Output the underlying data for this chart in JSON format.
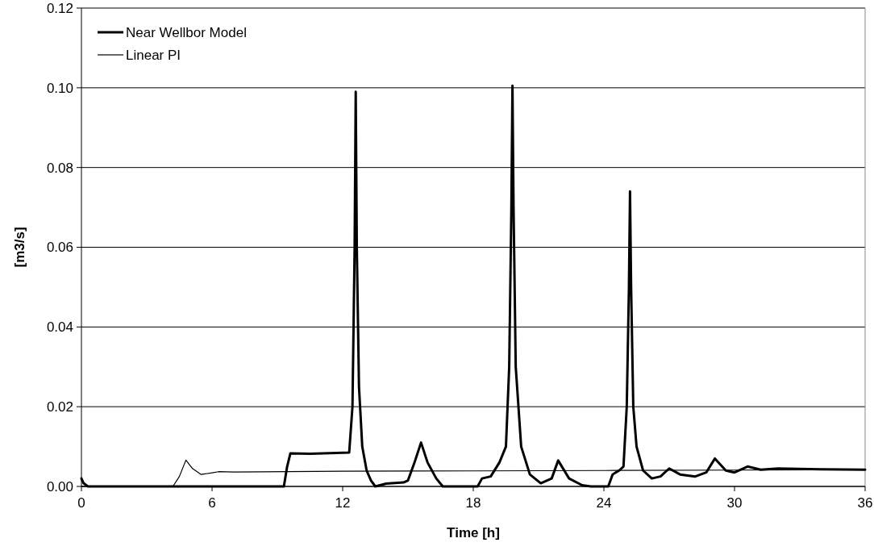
{
  "chart_data": {
    "type": "line",
    "xlabel": "Time [h]",
    "ylabel": "[m3/s]",
    "xlim": [
      0,
      36
    ],
    "xticks": [
      0,
      6,
      12,
      18,
      24,
      30,
      36
    ],
    "ylim": [
      0,
      0.12
    ],
    "yticks": [
      {
        "value": 0,
        "label": "0.00"
      },
      {
        "value": 0.02,
        "label": "0.02"
      },
      {
        "value": 0.04,
        "label": "0.04"
      },
      {
        "value": 0.06,
        "label": "0.06"
      },
      {
        "value": 0.08,
        "label": "0.08"
      },
      {
        "value": 0.1,
        "label": "0.10"
      },
      {
        "value": 0.12,
        "label": "0.12"
      }
    ],
    "grid": "y",
    "legend": "top left",
    "line_style": "solid",
    "series": [
      {
        "name": "Near Wellbor Model",
        "color": "#000000",
        "x": [
          0,
          0.1,
          0.3,
          9.3,
          9.45,
          9.6,
          10.5,
          12.3,
          12.45,
          12.55,
          12.6,
          12.65,
          12.75,
          12.9,
          13.1,
          13.3,
          13.5,
          14,
          14.8,
          15,
          15.3,
          15.6,
          15.9,
          16.3,
          16.6,
          18.2,
          18.4,
          18.8,
          19.2,
          19.5,
          19.65,
          19.75,
          19.8,
          19.85,
          19.95,
          20.2,
          20.6,
          21.1,
          21.6,
          21.9,
          22.4,
          23,
          23.4,
          24.2,
          24.4,
          24.7,
          24.9,
          25.05,
          25.15,
          25.2,
          25.25,
          25.35,
          25.5,
          25.8,
          26.2,
          26.6,
          27,
          27.5,
          28.2,
          28.7,
          29.1,
          29.6,
          30,
          30.6,
          31.2,
          32,
          34,
          36
        ],
        "values": [
          0.002,
          0.0008,
          0,
          0,
          0.005,
          0.0083,
          0.0082,
          0.0085,
          0.02,
          0.06,
          0.099,
          0.06,
          0.025,
          0.01,
          0.004,
          0.0015,
          0,
          0.0007,
          0.001,
          0.0015,
          0.006,
          0.011,
          0.006,
          0.002,
          0,
          0,
          0.002,
          0.0025,
          0.006,
          0.01,
          0.03,
          0.07,
          0.1005,
          0.07,
          0.03,
          0.01,
          0.003,
          0.0008,
          0.002,
          0.0065,
          0.002,
          0.0003,
          0,
          0,
          0.003,
          0.004,
          0.005,
          0.02,
          0.05,
          0.074,
          0.05,
          0.02,
          0.01,
          0.004,
          0.002,
          0.0025,
          0.0045,
          0.003,
          0.0025,
          0.0035,
          0.007,
          0.004,
          0.0035,
          0.005,
          0.0042,
          0.0045,
          0.0043,
          0.0042
        ]
      },
      {
        "name": "Linear PI",
        "color": "#000000",
        "x": [
          0,
          4.2,
          4.5,
          4.8,
          5.1,
          5.5,
          6,
          6.3,
          7,
          12,
          18,
          24,
          30,
          36
        ],
        "values": [
          0,
          0,
          0.0025,
          0.0066,
          0.0045,
          0.003,
          0.0034,
          0.0037,
          0.0036,
          0.0038,
          0.0039,
          0.004,
          0.0041,
          0.0042
        ]
      }
    ]
  }
}
